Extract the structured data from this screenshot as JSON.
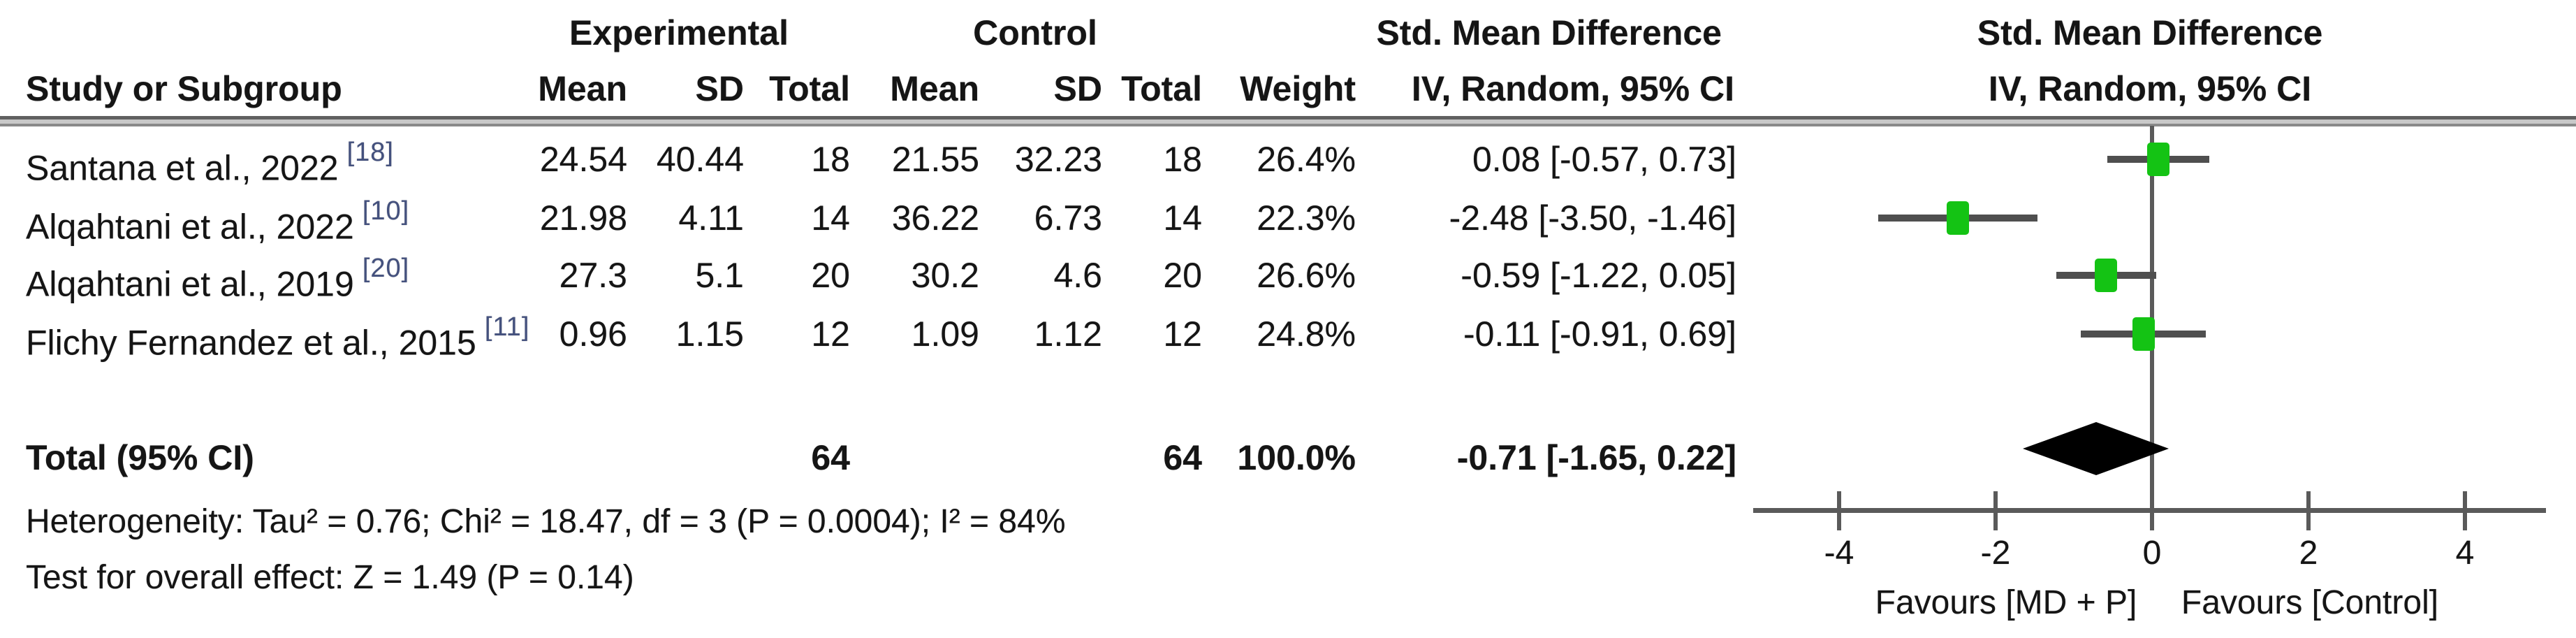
{
  "header": {
    "group_experimental": "Experimental",
    "group_control": "Control",
    "col_study": "Study or Subgroup",
    "col_mean": "Mean",
    "col_sd": "SD",
    "col_total": "Total",
    "col_weight": "Weight",
    "effect_title": "Std. Mean Difference",
    "effect_subtitle": "IV, Random, 95% CI",
    "plot_title": "Std. Mean Difference",
    "plot_subtitle": "IV, Random, 95% CI"
  },
  "chart_data": {
    "type": "forest",
    "effect_measure": "Std. Mean Difference",
    "model": "IV, Random, 95% CI",
    "axis_ticks": [
      -4,
      -2,
      0,
      2,
      4
    ],
    "xlim": [
      -5.1,
      5.0
    ],
    "xlabel_left": "Favours [MD + P]",
    "xlabel_right": "Favours [Control]",
    "studies": [
      {
        "name": "Santana et al., 2022",
        "citation": "[18]",
        "exp_mean": "24.54",
        "exp_sd": "40.44",
        "exp_total": "18",
        "ctl_mean": "21.55",
        "ctl_sd": "32.23",
        "ctl_total": "18",
        "weight": "26.4%",
        "ci_text": "0.08 [-0.57, 0.73]",
        "smd": 0.08,
        "ci_low": -0.57,
        "ci_high": 0.73
      },
      {
        "name": "Alqahtani et al., 2022",
        "citation": "[10]",
        "exp_mean": "21.98",
        "exp_sd": "4.11",
        "exp_total": "14",
        "ctl_mean": "36.22",
        "ctl_sd": "6.73",
        "ctl_total": "14",
        "weight": "22.3%",
        "ci_text": "-2.48 [-3.50, -1.46]",
        "smd": -2.48,
        "ci_low": -3.5,
        "ci_high": -1.46
      },
      {
        "name": "Alqahtani et al., 2019",
        "citation": "[20]",
        "exp_mean": "27.3",
        "exp_sd": "5.1",
        "exp_total": "20",
        "ctl_mean": "30.2",
        "ctl_sd": "4.6",
        "ctl_total": "20",
        "weight": "26.6%",
        "ci_text": "-0.59 [-1.22, 0.05]",
        "smd": -0.59,
        "ci_low": -1.22,
        "ci_high": 0.05
      },
      {
        "name": "Flichy Fernandez et al., 2015",
        "citation": "[11]",
        "exp_mean": "0.96",
        "exp_sd": "1.15",
        "exp_total": "12",
        "ctl_mean": "1.09",
        "ctl_sd": "1.12",
        "ctl_total": "12",
        "weight": "24.8%",
        "ci_text": "-0.11 [-0.91, 0.69]",
        "smd": -0.11,
        "ci_low": -0.91,
        "ci_high": 0.69
      }
    ],
    "total": {
      "label": "Total (95% CI)",
      "exp_total": "64",
      "ctl_total": "64",
      "weight": "100.0%",
      "ci_text": "-0.71 [-1.65, 0.22]",
      "smd": -0.71,
      "ci_low": -1.65,
      "ci_high": 0.22
    }
  },
  "footer": {
    "heterogeneity": "Heterogeneity: Tau² = 0.76; Chi² = 18.47, df = 3 (P = 0.0004); I² = 84%",
    "overall_effect": "Test for overall effect: Z = 1.49 (P = 0.14)"
  },
  "colors": {
    "marker_green": "#14c314",
    "ci_gray": "#4f4f4f",
    "rule_gray": "#6f6f6f",
    "diamond_black": "#000000",
    "citation_blue": "#44517e"
  }
}
